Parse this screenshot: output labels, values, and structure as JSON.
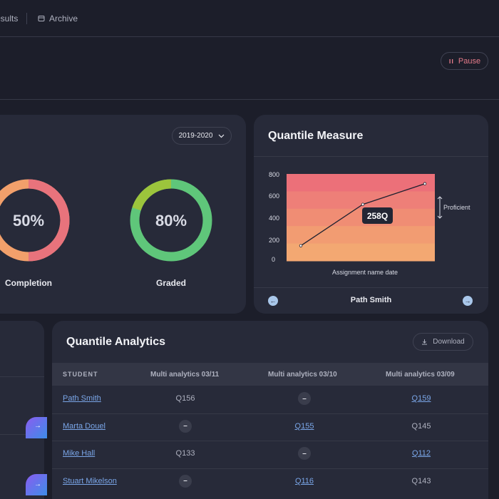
{
  "topbar": {
    "tabs": [
      {
        "label": "esults"
      },
      {
        "label": "Archive",
        "icon": "archive-icon"
      }
    ]
  },
  "header": {
    "pause_label": "Pause"
  },
  "progress_card": {
    "year": "2019-2020",
    "donuts": [
      {
        "value": "50%",
        "caption": "Completion",
        "fraction": 0.5,
        "colors": [
          "#e8737c",
          "#f2a06b"
        ]
      },
      {
        "value": "80%",
        "caption": "Graded",
        "fraction": 0.8,
        "colors": [
          "#5fc67a",
          "#9cc43c"
        ]
      }
    ]
  },
  "quantile_card": {
    "title": "Quantile Measure",
    "student": "Path Smith",
    "tooltip": "258Q",
    "proficient_label": "Proficient",
    "chart_data": {
      "type": "line",
      "title": "Quantile Measure",
      "xlabel": "Assignment name date",
      "ylabel": "",
      "ylim": [
        0,
        800
      ],
      "yticks": [
        "800",
        "600",
        "400",
        "200",
        "0"
      ],
      "series": [
        {
          "values": [
            {
              "x": 1,
              "y": 140
            },
            {
              "x": 2,
              "y": 520
            },
            {
              "x": 3,
              "y": 710
            }
          ]
        }
      ],
      "bands": [
        "#ec7079",
        "#ee7f78",
        "#f08d74",
        "#f29c72",
        "#f3a872"
      ],
      "grid": false
    }
  },
  "analytics_card": {
    "title": "Quantile Analytics",
    "download_label": "Download",
    "columns": [
      "STUDENT",
      "Multi analytics 03/11",
      "Multi analytics 03/10",
      "Multi analytics 03/09"
    ],
    "rows": [
      {
        "name": "Path Smith",
        "c1": "Q156",
        "c1_type": "plain",
        "c2": "–",
        "c2_type": "dash",
        "c3": "Q159",
        "c3_type": "link"
      },
      {
        "name": "Marta Douel",
        "c1": "–",
        "c1_type": "dash",
        "c2": "Q155",
        "c2_type": "link",
        "c3": "Q145",
        "c3_type": "plain"
      },
      {
        "name": "Mike Hall",
        "c1": "Q133",
        "c1_type": "plain",
        "c2": "–",
        "c2_type": "dash",
        "c3": "Q112",
        "c3_type": "link"
      },
      {
        "name": "Stuart Mikelson",
        "c1": "–",
        "c1_type": "dash",
        "c2": "Q116",
        "c2_type": "link",
        "c3": "Q143",
        "c3_type": "plain"
      }
    ]
  },
  "colors": {
    "background": "#1c1e2a",
    "card": "#272a39",
    "link": "#7aa6e8",
    "pause": "#e57b8a"
  }
}
